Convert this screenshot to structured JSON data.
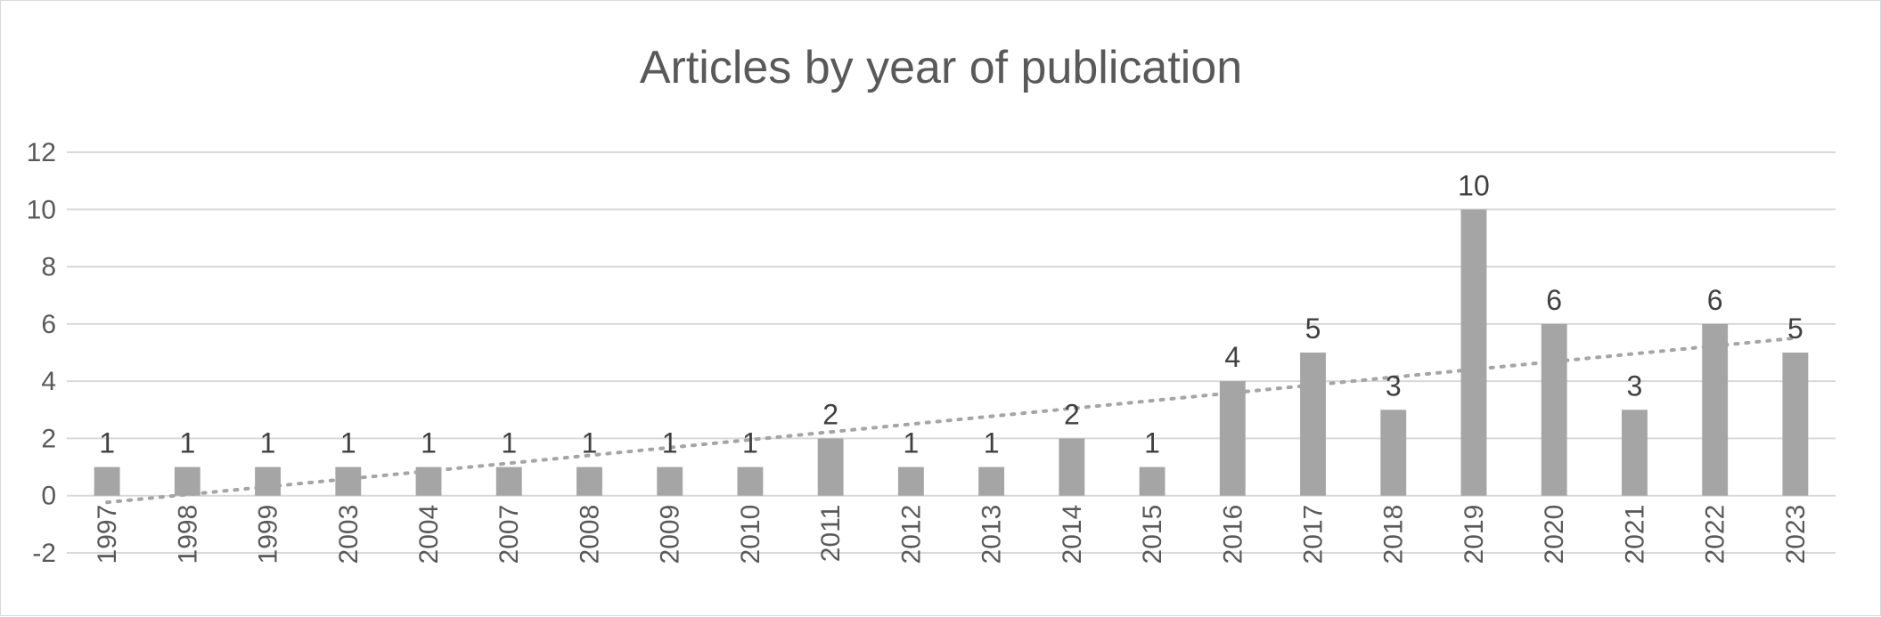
{
  "chart_data": {
    "type": "bar",
    "title": "Articles by year of publication",
    "categories": [
      "1997",
      "1998",
      "1999",
      "2003",
      "2004",
      "2007",
      "2008",
      "2009",
      "2010",
      "2011",
      "2012",
      "2013",
      "2014",
      "2015",
      "2016",
      "2017",
      "2018",
      "2019",
      "2020",
      "2021",
      "2022",
      "2023"
    ],
    "series": [
      {
        "values": [
          1,
          1,
          1,
          1,
          1,
          1,
          1,
          1,
          1,
          2,
          1,
          1,
          2,
          1,
          4,
          5,
          3,
          10,
          6,
          3,
          6,
          5
        ],
        "color": "#a5a5a5",
        "data_labels": true
      }
    ],
    "trendline": {
      "type": "linear",
      "style": "dotted",
      "color": "#a5a5a5"
    },
    "ylim": [
      -2,
      12
    ],
    "yticks": [
      -2,
      0,
      2,
      4,
      6,
      8,
      10,
      12
    ],
    "grid": true,
    "gridline_color": "#d9d9d9",
    "legend": "none",
    "xlabel": "",
    "ylabel": ""
  }
}
